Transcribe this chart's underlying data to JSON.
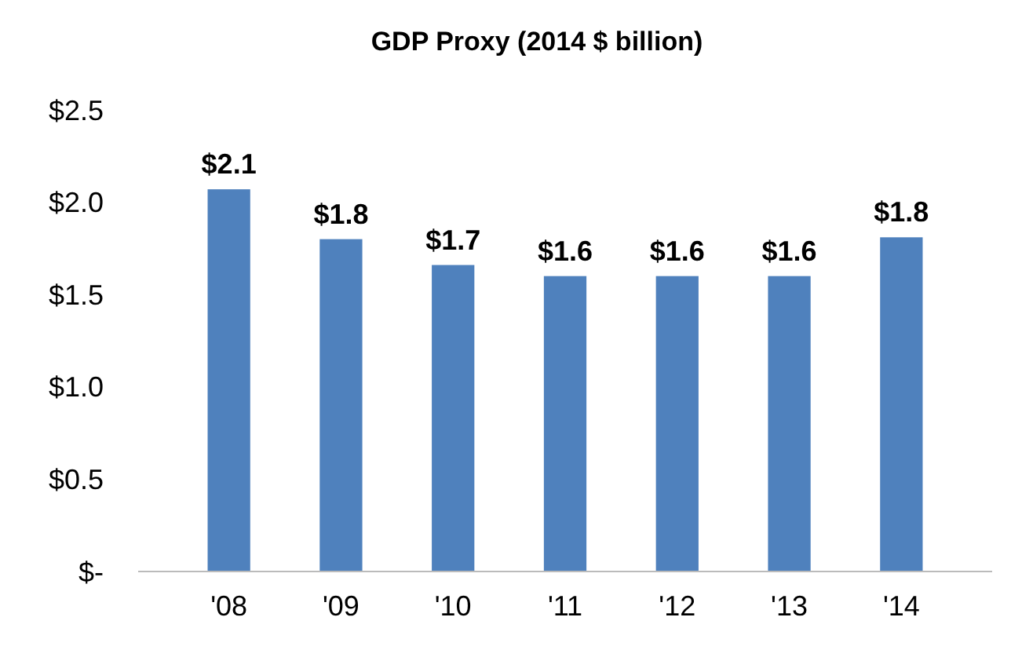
{
  "chart_data": {
    "type": "bar",
    "title": "GDP Proxy (2014 $ billion)",
    "categories": [
      "'08",
      "'09",
      "'10",
      "'11",
      "'12",
      "'13",
      "'14"
    ],
    "values": [
      2.07,
      1.8,
      1.66,
      1.6,
      1.6,
      1.6,
      1.81
    ],
    "value_labels": [
      "$2.1",
      "$1.8",
      "$1.7",
      "$1.6",
      "$1.6",
      "$1.6",
      "$1.8"
    ],
    "color": "#4f81bd",
    "ylim": [
      0,
      2.5
    ],
    "yticks": [
      {
        "value": 0,
        "label": "$-"
      },
      {
        "value": 0.5,
        "label": "$0.5"
      },
      {
        "value": 1,
        "label": "$1.0"
      },
      {
        "value": 1.5,
        "label": "$1.5"
      },
      {
        "value": 2,
        "label": "$2.0"
      },
      {
        "value": 2.5,
        "label": "$2.5"
      }
    ]
  }
}
